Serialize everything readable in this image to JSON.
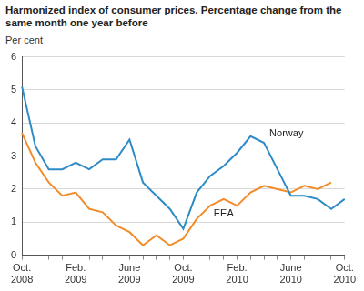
{
  "chart_data": {
    "type": "line",
    "title": "Harmonized index of consumer prices. Percentage change from the same month one year before",
    "y_label": "Per cent",
    "categories": [
      "Oct. 2008",
      null,
      null,
      null,
      "Feb. 2009",
      null,
      null,
      null,
      "June 2009",
      null,
      null,
      null,
      "Oct. 2009",
      null,
      null,
      null,
      "Feb. 2010",
      null,
      null,
      null,
      "June 2010",
      null,
      null,
      null,
      "Oct. 2010"
    ],
    "series": [
      {
        "name": "Norway",
        "color": "#2e8bc6",
        "values": [
          5.1,
          3.3,
          2.6,
          2.6,
          2.8,
          2.6,
          2.9,
          2.9,
          3.5,
          2.2,
          1.8,
          1.4,
          0.8,
          1.9,
          2.4,
          2.7,
          3.1,
          3.6,
          3.4,
          2.6,
          1.8,
          1.8,
          1.7,
          1.4,
          1.7
        ]
      },
      {
        "name": "EEA",
        "color": "#f28c28",
        "values": [
          3.7,
          2.8,
          2.2,
          1.8,
          1.9,
          1.4,
          1.3,
          0.9,
          0.7,
          0.3,
          0.6,
          0.3,
          0.5,
          1.1,
          1.5,
          1.7,
          1.5,
          1.9,
          2.1,
          2.0,
          1.9,
          2.1,
          2.0,
          2.2,
          null
        ]
      }
    ],
    "ylim": [
      0,
      6
    ],
    "yticks": [
      0,
      1,
      2,
      3,
      4,
      5,
      6
    ],
    "grid": true
  }
}
